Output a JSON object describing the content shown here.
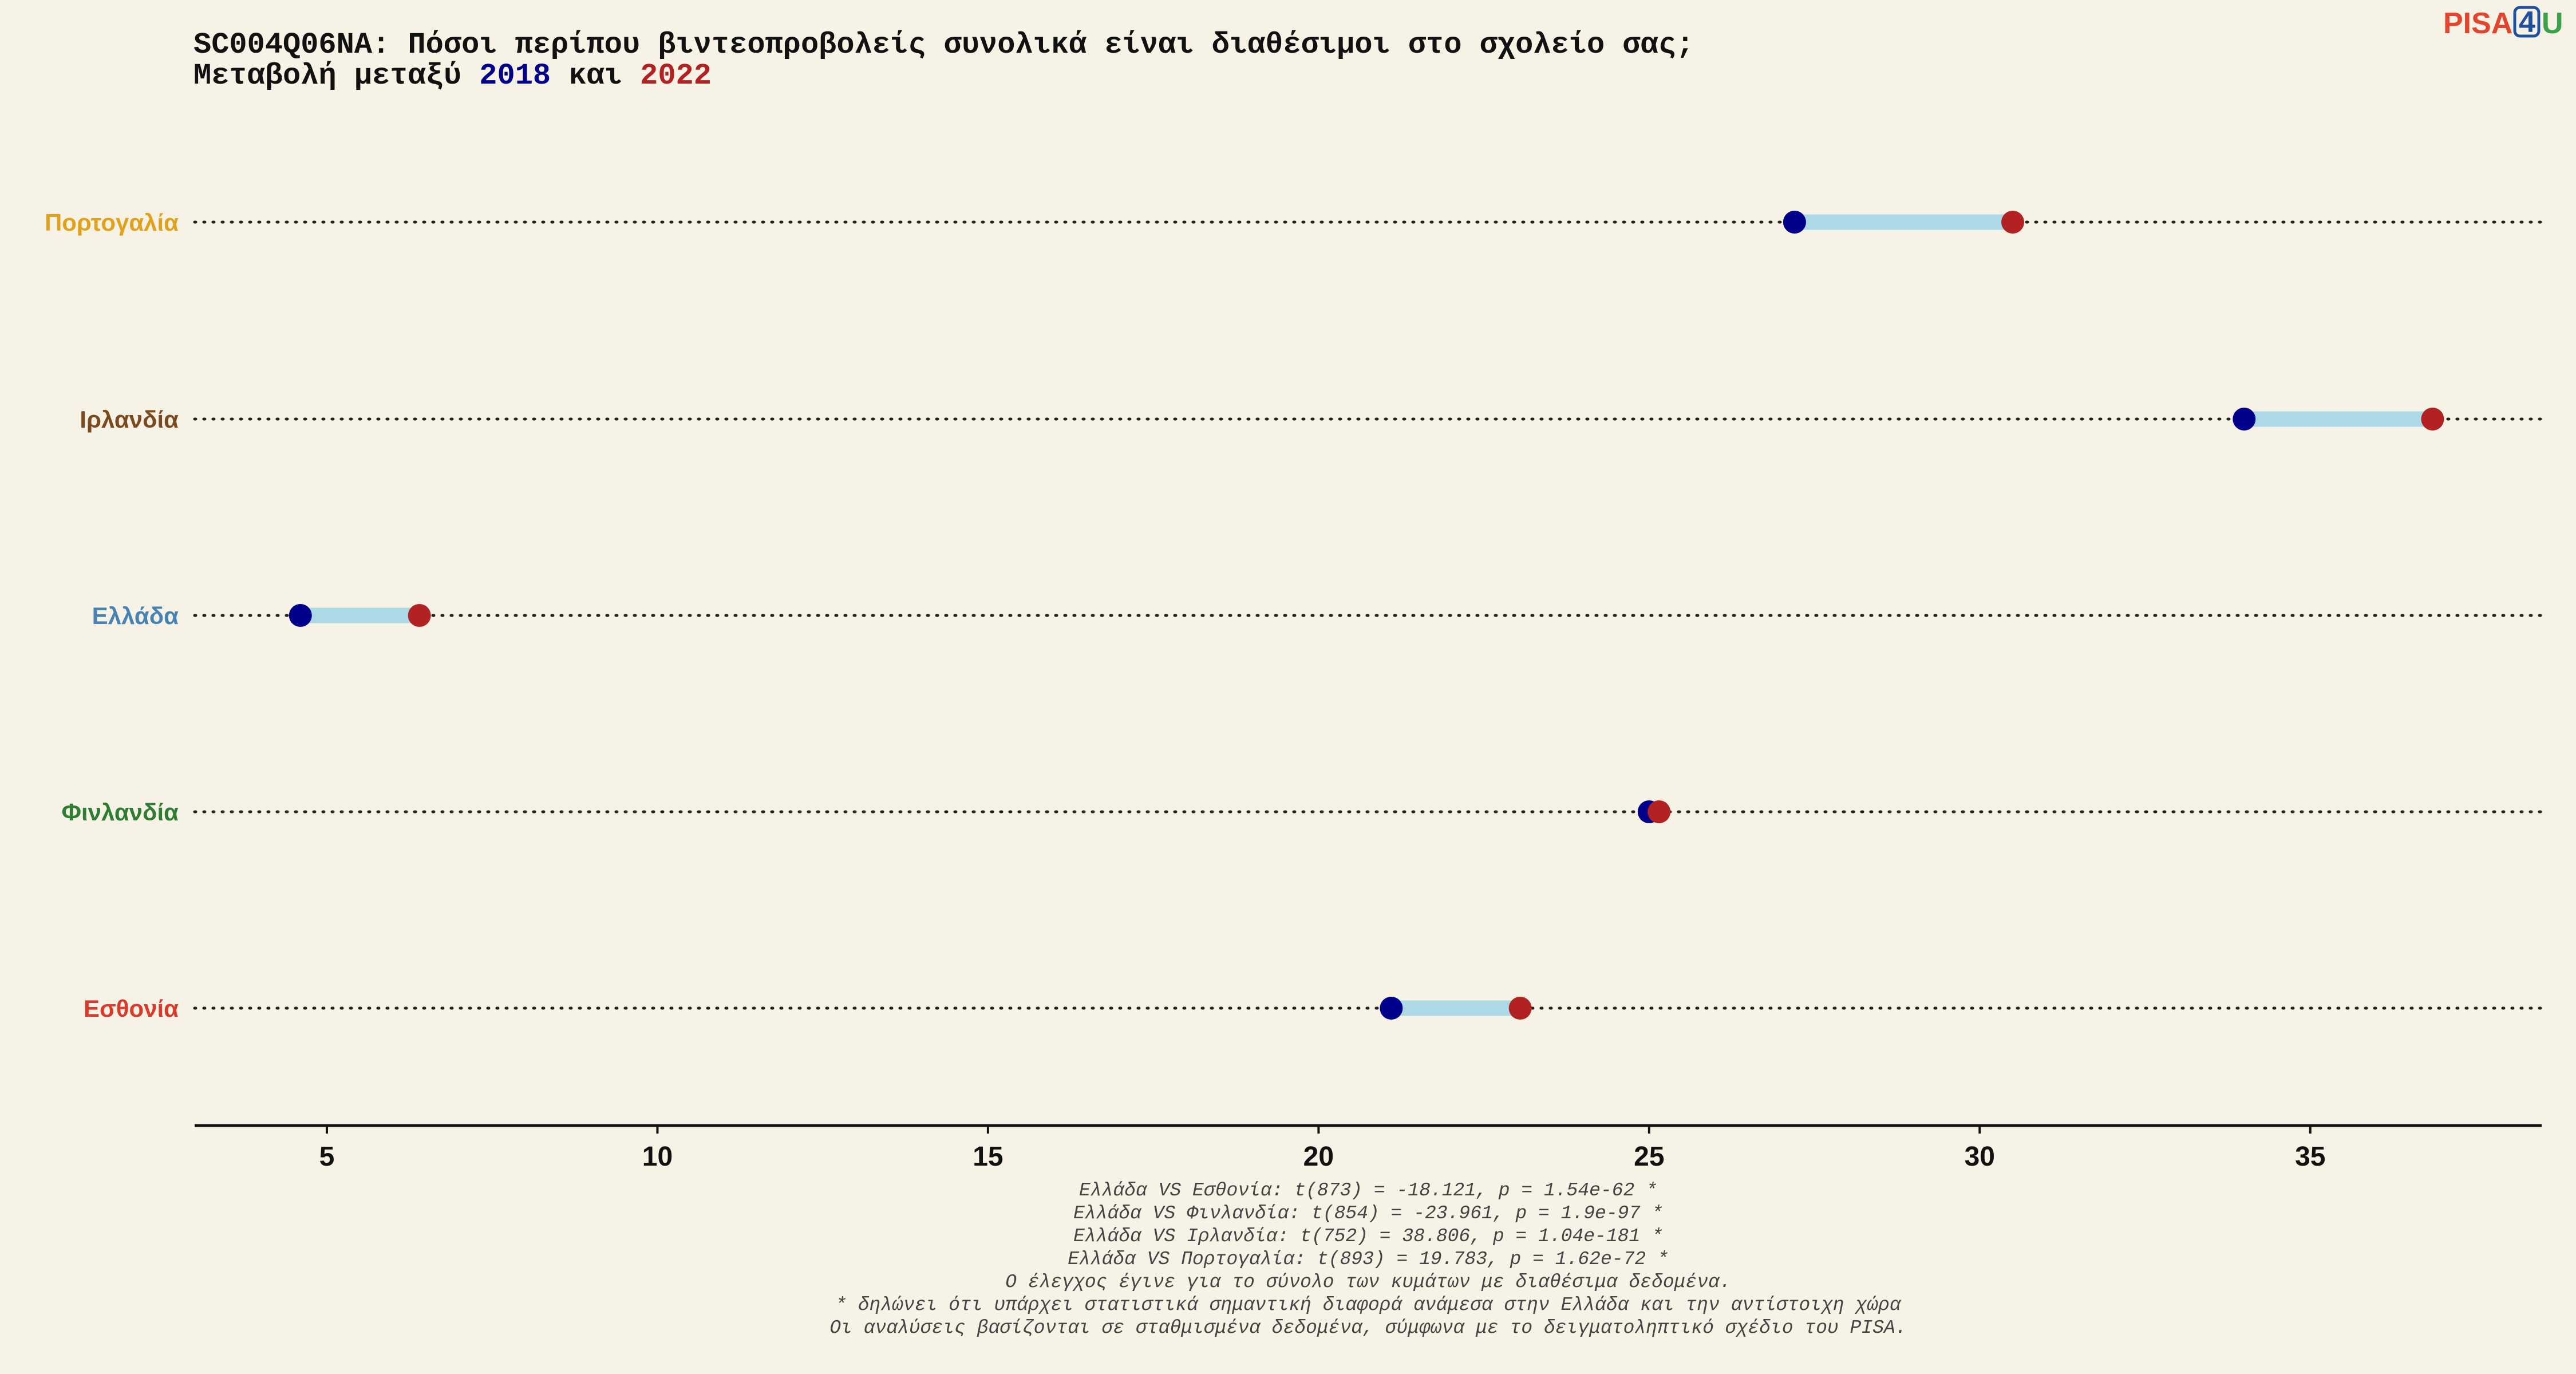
{
  "logo": {
    "part1": "PISA",
    "part2": "4",
    "part3": "U",
    "colors": {
      "part1": "#e2452e",
      "part2": "#1f4fa0",
      "part3": "#3aa04a"
    }
  },
  "header": {
    "line1": "SC004Q06NA: Πόσοι περίπου βιντεοπροβολείς συνολικά είναι διαθέσιμοι στο σχολείο σας;",
    "line2_prefix": "Μεταβολή μεταξύ ",
    "year1": "2018",
    "line2_mid": " και ",
    "year2": "2022"
  },
  "chart_data": {
    "type": "dumbbell",
    "xlim": [
      3,
      38.5
    ],
    "x_ticks": [
      5,
      10,
      15,
      20,
      25,
      30,
      35
    ],
    "grid": "dotted horizontal guide per row",
    "series": [
      {
        "name": "2018",
        "color": "#00008b"
      },
      {
        "name": "2022",
        "color": "#b22222"
      }
    ],
    "connector_color": "#add8e6",
    "categories": [
      {
        "name": "Πορτογαλία",
        "color": "#e0a21c",
        "v2018": 27.2,
        "v2022": 30.5
      },
      {
        "name": "Ιρλανδία",
        "color": "#7a4a1e",
        "v2018": 34.0,
        "v2022": 36.85
      },
      {
        "name": "Ελλάδα",
        "color": "#4682b4",
        "v2018": 4.6,
        "v2022": 6.4
      },
      {
        "name": "Φινλανδία",
        "color": "#2e7d32",
        "v2018": 25.0,
        "v2022": 25.15
      },
      {
        "name": "Εσθονία",
        "color": "#d93a2b",
        "v2018": 21.1,
        "v2022": 23.05
      }
    ]
  },
  "footnotes": [
    "Ελλάδα VS Εσθονία: t(873) = -18.121, p = 1.54e-62 *",
    "Ελλάδα VS Φινλανδία: t(854) = -23.961, p = 1.9e-97 *",
    "Ελλάδα VS Ιρλανδία: t(752) = 38.806, p = 1.04e-181 *",
    "Ελλάδα VS Πορτογαλία: t(893) = 19.783, p = 1.62e-72 *",
    "Ο έλεγχος έγινε για το σύνολο των κυμάτων με διαθέσιμα δεδομένα.",
    "* δηλώνει ότι υπάρχει στατιστικά σημαντική διαφορά ανάμεσα στην Ελλάδα και την αντίστοιχη χώρα",
    "Οι αναλύσεις βασίζονται σε σταθμισμένα δεδομένα, σύμφωνα με το δειγματοληπτικό σχέδιο του PISA."
  ]
}
